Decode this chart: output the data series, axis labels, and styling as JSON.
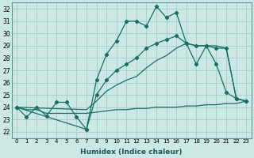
{
  "bg_color": "#cce8e4",
  "grid_color": "#aad0cc",
  "line_color": "#1a7060",
  "xlabel": "Humidex (Indice chaleur)",
  "xlim": [
    -0.5,
    23.5
  ],
  "ylim": [
    21.5,
    32.5
  ],
  "xticks": [
    0,
    1,
    2,
    3,
    4,
    5,
    6,
    7,
    8,
    9,
    10,
    11,
    12,
    13,
    14,
    15,
    16,
    17,
    18,
    19,
    20,
    21,
    22,
    23
  ],
  "yticks": [
    22,
    23,
    24,
    25,
    26,
    27,
    28,
    29,
    30,
    31,
    32
  ],
  "curve1_x": [
    0,
    1,
    2,
    3,
    4,
    5,
    6,
    7,
    8,
    9,
    10,
    11,
    12,
    13,
    14,
    15,
    16,
    17,
    18,
    19,
    20,
    21,
    22,
    23
  ],
  "curve1_y": [
    24.0,
    23.2,
    24.0,
    23.3,
    24.4,
    24.4,
    23.2,
    22.2,
    26.2,
    28.3,
    29.4,
    31.0,
    31.0,
    30.6,
    32.2,
    31.3,
    31.7,
    29.2,
    27.5,
    29.0,
    27.5,
    25.2,
    24.7,
    24.5
  ],
  "curve2_x": [
    0,
    7,
    8,
    9,
    10,
    11,
    12,
    13,
    14,
    15,
    16,
    17,
    18,
    19,
    20,
    21,
    22,
    23
  ],
  "curve2_y": [
    24.0,
    22.2,
    25.0,
    26.2,
    27.0,
    27.5,
    28.0,
    28.8,
    29.2,
    29.5,
    29.8,
    29.2,
    29.0,
    29.0,
    28.8,
    28.8,
    24.7,
    24.5
  ],
  "line_flat_x": [
    0,
    1,
    2,
    3,
    4,
    5,
    6,
    7,
    8,
    9,
    10,
    11,
    12,
    13,
    14,
    15,
    16,
    17,
    18,
    19,
    20,
    21,
    22,
    23
  ],
  "line_flat_y": [
    24.0,
    23.8,
    23.8,
    23.5,
    23.5,
    23.5,
    23.5,
    23.5,
    23.6,
    23.7,
    23.8,
    23.8,
    23.9,
    23.9,
    24.0,
    24.0,
    24.0,
    24.1,
    24.1,
    24.2,
    24.2,
    24.3,
    24.3,
    24.5
  ],
  "line_diag_x": [
    0,
    7,
    8,
    9,
    10,
    11,
    12,
    13,
    14,
    15,
    16,
    17,
    18,
    19,
    20,
    21,
    22,
    23
  ],
  "line_diag_y": [
    24.0,
    23.8,
    24.5,
    25.3,
    25.8,
    26.2,
    26.5,
    27.2,
    27.8,
    28.2,
    28.8,
    29.2,
    29.0,
    29.0,
    29.0,
    28.8,
    24.7,
    24.5
  ]
}
